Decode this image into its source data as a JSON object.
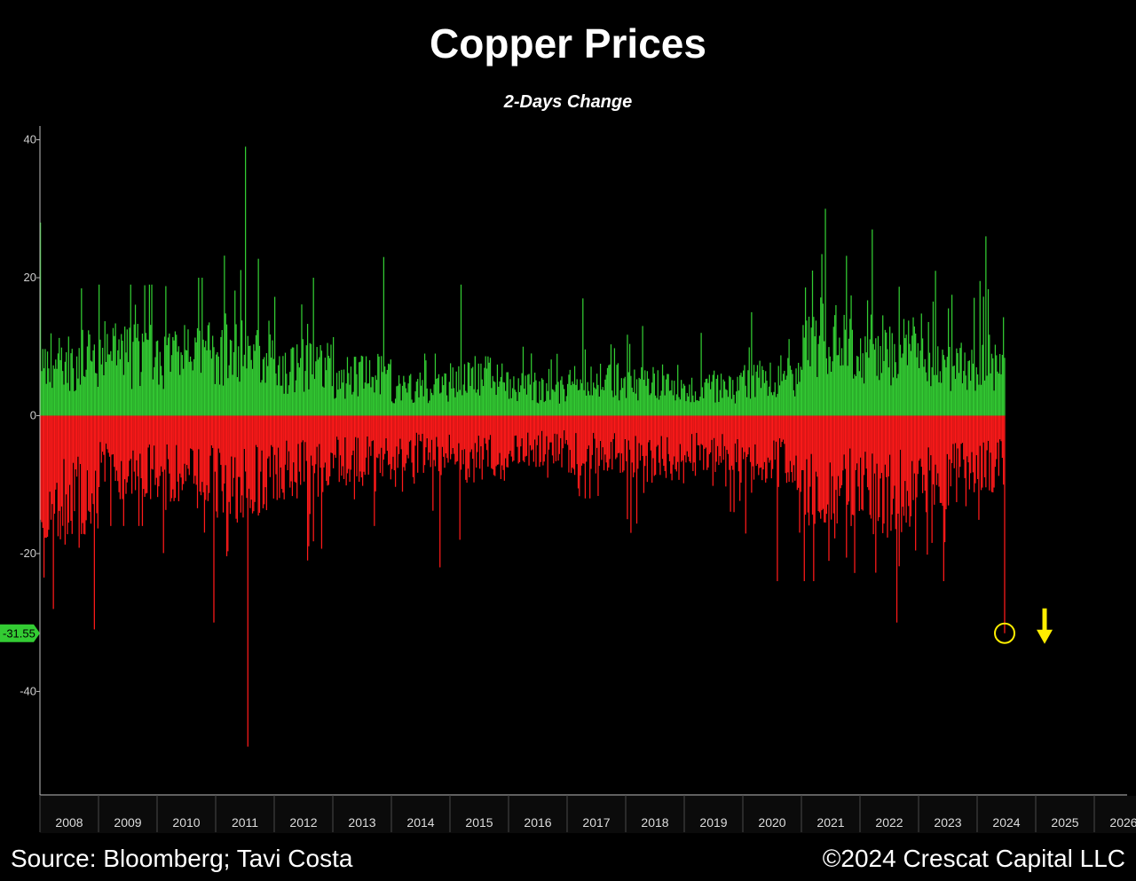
{
  "chart_data": {
    "type": "bar",
    "title": "Copper Prices",
    "subtitle": "2-Days Change",
    "ylim": [
      -55,
      42
    ],
    "yticks": [
      40,
      20,
      0,
      -20,
      -40
    ],
    "years": [
      "2008",
      "2009",
      "2010",
      "2011",
      "2012",
      "2013",
      "2014",
      "2015",
      "2016",
      "2017",
      "2018",
      "2019",
      "2020",
      "2021",
      "2022",
      "2023",
      "2024",
      "2025",
      "2026"
    ],
    "last_value": "-31.55",
    "positive_color": "#33cc33",
    "negative_color": "#ff1a1a",
    "highlight_color": "#ffee00",
    "series": [
      {
        "year": "2008",
        "max": 28,
        "min": -31,
        "typical_up": 10,
        "typical_down": -15
      },
      {
        "year": "2009",
        "max": 19,
        "min": -16,
        "typical_up": 11,
        "typical_down": -10
      },
      {
        "year": "2010",
        "max": 20,
        "min": -30,
        "typical_up": 11,
        "typical_down": -11
      },
      {
        "year": "2011",
        "max": 39,
        "min": -48,
        "typical_up": 12,
        "typical_down": -12
      },
      {
        "year": "2012",
        "max": 20,
        "min": -21,
        "typical_up": 9,
        "typical_down": -10
      },
      {
        "year": "2013",
        "max": 23,
        "min": -16,
        "typical_up": 7,
        "typical_down": -8
      },
      {
        "year": "2014",
        "max": 9,
        "min": -22,
        "typical_up": 5,
        "typical_down": -7
      },
      {
        "year": "2015",
        "max": 19,
        "min": -18,
        "typical_up": 7,
        "typical_down": -8
      },
      {
        "year": "2016",
        "max": 10,
        "min": -9,
        "typical_up": 5,
        "typical_down": -6
      },
      {
        "year": "2017",
        "max": 17,
        "min": -12,
        "typical_up": 6,
        "typical_down": -7
      },
      {
        "year": "2018",
        "max": 13,
        "min": -17,
        "typical_up": 6,
        "typical_down": -8
      },
      {
        "year": "2019",
        "max": 12,
        "min": -14,
        "typical_up": 5,
        "typical_down": -7
      },
      {
        "year": "2020",
        "max": 15,
        "min": -24,
        "typical_up": 7,
        "typical_down": -9
      },
      {
        "year": "2021",
        "max": 30,
        "min": -24,
        "typical_up": 12,
        "typical_down": -13
      },
      {
        "year": "2022",
        "max": 27,
        "min": -30,
        "typical_up": 12,
        "typical_down": -14
      },
      {
        "year": "2023",
        "max": 21,
        "min": -24,
        "typical_up": 9,
        "typical_down": -11
      },
      {
        "year": "2024",
        "max": 26,
        "min": -31.55,
        "typical_up": 10,
        "typical_down": -9
      }
    ]
  },
  "footer": {
    "source": "Source: Bloomberg; Tavi Costa",
    "copyright": "©2024 Crescat Capital LLC"
  }
}
